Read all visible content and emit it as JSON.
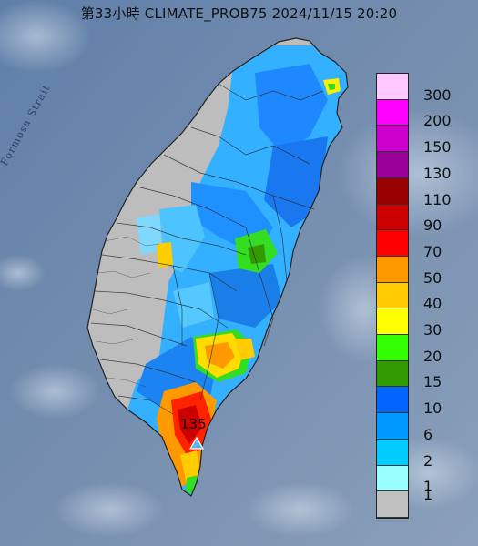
{
  "title": "第33小時  CLIMATE_PROB75 2024/11/15 20:20",
  "strait_label": "Formosa Strait",
  "peak_label": "135",
  "peak_marker": "triangle-icon",
  "legend": [
    {
      "label": "300",
      "color": "#ffc8ff"
    },
    {
      "label": "200",
      "color": "#ff00ff"
    },
    {
      "label": "150",
      "color": "#cc00cc"
    },
    {
      "label": "130",
      "color": "#990099"
    },
    {
      "label": "110",
      "color": "#990000"
    },
    {
      "label": "90",
      "color": "#cc0000"
    },
    {
      "label": "70",
      "color": "#ff0000"
    },
    {
      "label": "50",
      "color": "#ff9900"
    },
    {
      "label": "40",
      "color": "#ffcc00"
    },
    {
      "label": "30",
      "color": "#ffff00"
    },
    {
      "label": "20",
      "color": "#33ff00"
    },
    {
      "label": "15",
      "color": "#339900"
    },
    {
      "label": "10",
      "color": "#0066ff"
    },
    {
      "label": "6",
      "color": "#0099ff"
    },
    {
      "label": "2",
      "color": "#00ccff"
    },
    {
      "label": "1",
      "color": "#99ffff"
    },
    {
      "label": "",
      "color": "#c0c0c0"
    }
  ]
}
